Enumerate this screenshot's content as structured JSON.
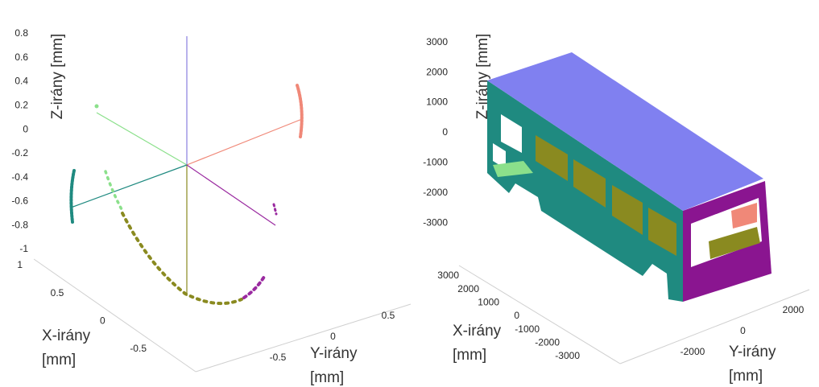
{
  "chart_data": [
    {
      "type": "scatter3d",
      "zlabel": "Z-irány [mm]",
      "xlabel": [
        "X-irány",
        "[mm]"
      ],
      "ylabel": [
        "Y-irány",
        "[mm]"
      ],
      "zlim": [
        -1,
        0.8
      ],
      "zticks": [
        0.8,
        0.6,
        0.4,
        0.2,
        0,
        -0.2,
        -0.4,
        -0.6,
        -0.8,
        -1
      ],
      "xlim": [
        -0.8,
        1
      ],
      "xticks": [
        1,
        0.5,
        0,
        -0.5
      ],
      "ylim": [
        -0.8,
        0.8
      ],
      "yticks": [
        -0.5,
        0,
        0.5
      ]
    },
    {
      "type": "scatter3d",
      "zlabel": "Z-irány [mm]",
      "xlabel": [
        "X-irány",
        "[mm]"
      ],
      "ylabel": [
        "Y-irány",
        "[mm]"
      ],
      "zlim": [
        -3500,
        3500
      ],
      "zticks": [
        3000,
        2000,
        1000,
        0,
        -1000,
        -2000,
        -3000
      ],
      "xlim": [
        -3500,
        3500
      ],
      "xticks": [
        3000,
        2000,
        1000,
        0,
        -1000,
        -2000,
        -3000
      ],
      "ylim": [
        -3000,
        3000
      ],
      "yticks": [
        -2000,
        0,
        2000
      ]
    }
  ]
}
